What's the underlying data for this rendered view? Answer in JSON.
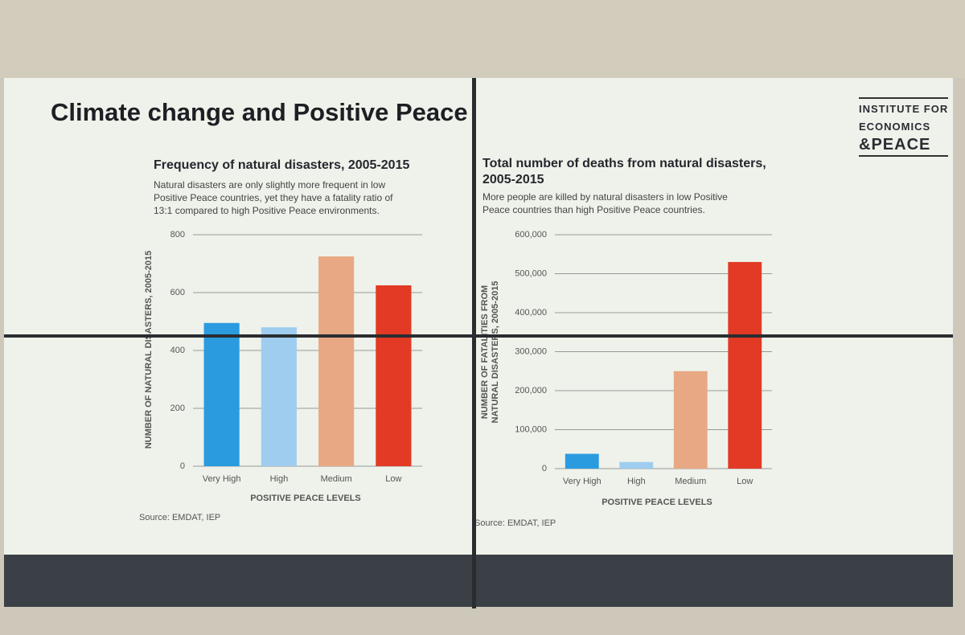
{
  "title": "Climate change and Positive Peace",
  "logo": [
    "INSTITUTE FOR",
    "ECONOMICS",
    "&PEACE"
  ],
  "chart_data": [
    {
      "type": "bar",
      "title": "Frequency of natural disasters, 2005-2015",
      "subtitle": "Natural disasters are only slightly more frequent in low Positive Peace countries, yet they have a fatality ratio of 13:1 compared to high Positive Peace environments.",
      "ylabel": "NUMBER OF NATURAL DISASTERS, 2005-2015",
      "xlabel": "POSITIVE PEACE LEVELS",
      "source": "Source: EMDAT, IEP",
      "categories": [
        "Very High",
        "High",
        "Medium",
        "Low"
      ],
      "values": [
        495,
        480,
        725,
        625
      ],
      "colors": [
        "#2b9be0",
        "#9fcdef",
        "#e8a884",
        "#e23a24"
      ],
      "ylim": [
        0,
        800
      ],
      "yticks": [
        0,
        200,
        400,
        600,
        800
      ],
      "grid": true
    },
    {
      "type": "bar",
      "title": "Total number of deaths from natural disasters, 2005-2015",
      "subtitle": "More people are killed by natural disasters in low Positive Peace countries than high Positive Peace countries.",
      "ylabel": [
        "NUMBER OF FATALITIES FROM",
        "NATURAL DISASTERS, 2005-2015"
      ],
      "xlabel": "POSITIVE PEACE LEVELS",
      "source": "Source: EMDAT, IEP",
      "categories": [
        "Very High",
        "High",
        "Medium",
        "Low"
      ],
      "values": [
        38000,
        17000,
        250000,
        530000
      ],
      "colors": [
        "#2b9be0",
        "#9fcdef",
        "#e8a884",
        "#e23a24"
      ],
      "ylim": [
        0,
        600000
      ],
      "yticks": [
        0,
        {
          "value": 100000,
          "label": "100,000"
        },
        {
          "value": 200000,
          "label": "200,000"
        },
        {
          "value": 300000,
          "label": "300,000"
        },
        {
          "value": 400000,
          "label": "400,000"
        },
        {
          "value": 500000,
          "label": "500,000"
        },
        {
          "value": 600000,
          "label": "600,000"
        }
      ],
      "grid": true
    }
  ]
}
